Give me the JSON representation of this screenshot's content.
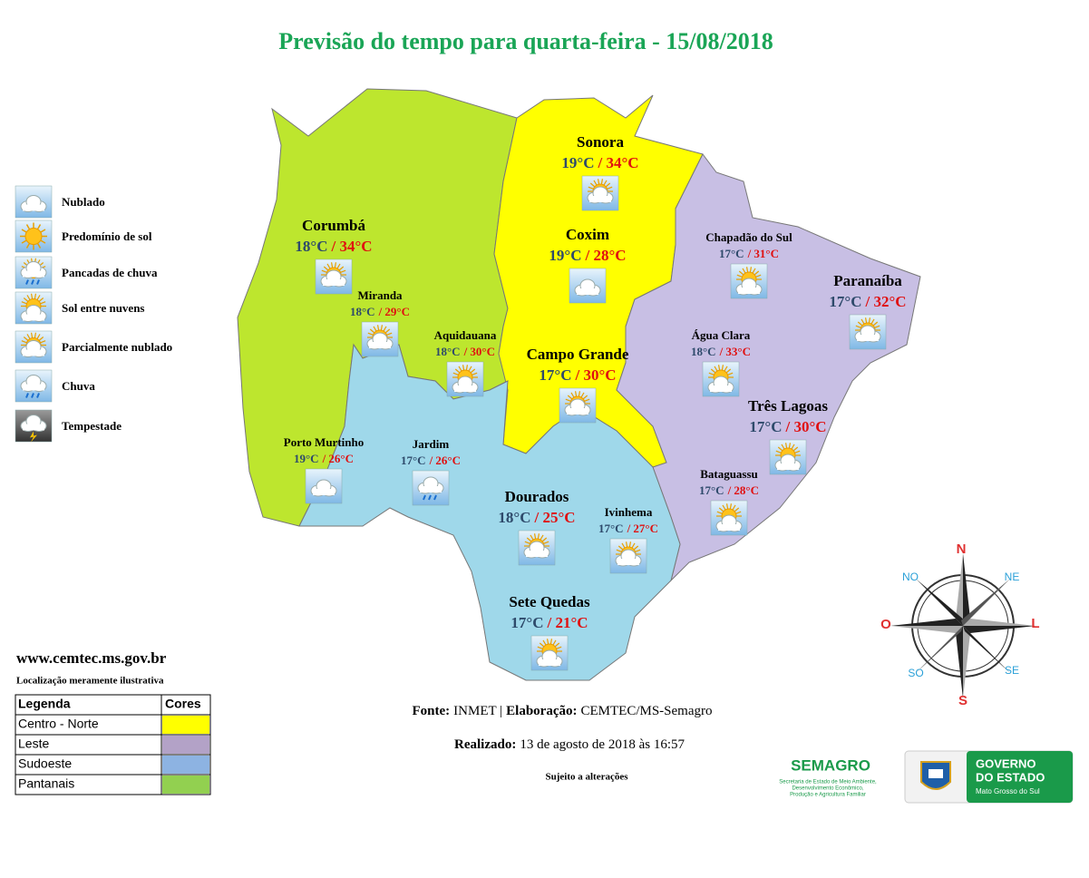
{
  "header": {
    "title": "Previsão do tempo para quarta-feira - 15/08/2018"
  },
  "icon_legend": [
    {
      "label": "Nublado"
    },
    {
      "label": "Predomínio de sol"
    },
    {
      "label": "Pancadas de chuva"
    },
    {
      "label": "Sol entre nuvens"
    },
    {
      "label": "Parcialmente nublado"
    },
    {
      "label": "Chuva"
    },
    {
      "label": "Tempestade"
    }
  ],
  "cities": [
    {
      "name": "Sonora",
      "min": "19°C",
      "max": "/ 34°C",
      "icon": "Parcialmente nublado"
    },
    {
      "name": "Corumbá",
      "min": "18°C",
      "max": "/ 34°C",
      "icon": "Parcialmente nublado"
    },
    {
      "name": "Coxim",
      "min": "19°C",
      "max": "/ 28°C",
      "icon": "Nublado"
    },
    {
      "name": "Chapadão  do Sul",
      "min": "17°C",
      "max": "/ 31°C",
      "icon": "Sol entre nuvens"
    },
    {
      "name": "Paranaíba",
      "min": "17°C",
      "max": "/ 32°C",
      "icon": "Parcialmente nublado"
    },
    {
      "name": "Miranda",
      "min": "18°C",
      "max": "/ 29°C",
      "icon": "Parcialmente nublado"
    },
    {
      "name": "Aquidauana",
      "min": "18°C",
      "max": "/ 30°C",
      "icon": "Sol entre nuvens"
    },
    {
      "name": "Campo Grande",
      "min": "17°C",
      "max": "/ 30°C",
      "icon": "Parcialmente nublado"
    },
    {
      "name": "Água Clara",
      "min": "18°C",
      "max": "/ 33°C",
      "icon": "Sol entre nuvens"
    },
    {
      "name": "Três Lagoas",
      "min": "17°C",
      "max": "/ 30°C",
      "icon": "Sol entre nuvens"
    },
    {
      "name": "Porto Murtinho",
      "min": "19°C",
      "max": "/ 26°C",
      "icon": "Nublado"
    },
    {
      "name": "Jardim",
      "min": "17°C",
      "max": "/ 26°C",
      "icon": "Chuva"
    },
    {
      "name": "Bataguassu",
      "min": "17°C",
      "max": "/ 28°C",
      "icon": "Sol entre nuvens"
    },
    {
      "name": "Dourados",
      "min": "18°C",
      "max": "/ 25°C",
      "icon": "Parcialmente nublado"
    },
    {
      "name": "Ivinhema",
      "min": "17°C",
      "max": "/ 27°C",
      "icon": "Parcialmente nublado"
    },
    {
      "name": "Sete Quedas",
      "min": "17°C",
      "max": "/ 21°C",
      "icon": "Sol entre nuvens"
    }
  ],
  "website": "www.cemtec.ms.gov.br",
  "note": "Localização  meramente  ilustrativa",
  "region_legend": {
    "header": [
      "Legenda",
      "Cores"
    ],
    "rows": [
      {
        "label": "Centro - Norte",
        "color": "#ffff00"
      },
      {
        "label": "Leste",
        "color": "#b3a2c7"
      },
      {
        "label": "Sudoeste",
        "color": "#8db3e2"
      },
      {
        "label": "Pantanais",
        "color": "#92d050"
      }
    ]
  },
  "source": {
    "label1": "Fonte:",
    "text1": "INMET |",
    "label2": "Elaboração:",
    "text2": "CEMTEC/MS-Semagro"
  },
  "made": {
    "label": "Realizado:",
    "text": "13 de agosto de 2018 às 16:57"
  },
  "disclaimer": "Sujeito a alterações",
  "compass": {
    "n": "N",
    "ne": "NE",
    "e": "L",
    "se": "SE",
    "s": "S",
    "sw": "SO",
    "w": "O",
    "nw": "NO"
  },
  "logos": {
    "semagro": "SEMAGRO",
    "semagro_sub": [
      "Secretaria de Estado de Meio Ambiente,",
      "Desenvolvimento Econômico,",
      "Produção e Agricultura Familiar"
    ],
    "gov": [
      "GOVERNO",
      "DO ESTADO"
    ],
    "gov_sub": "Mato Grosso do Sul"
  }
}
